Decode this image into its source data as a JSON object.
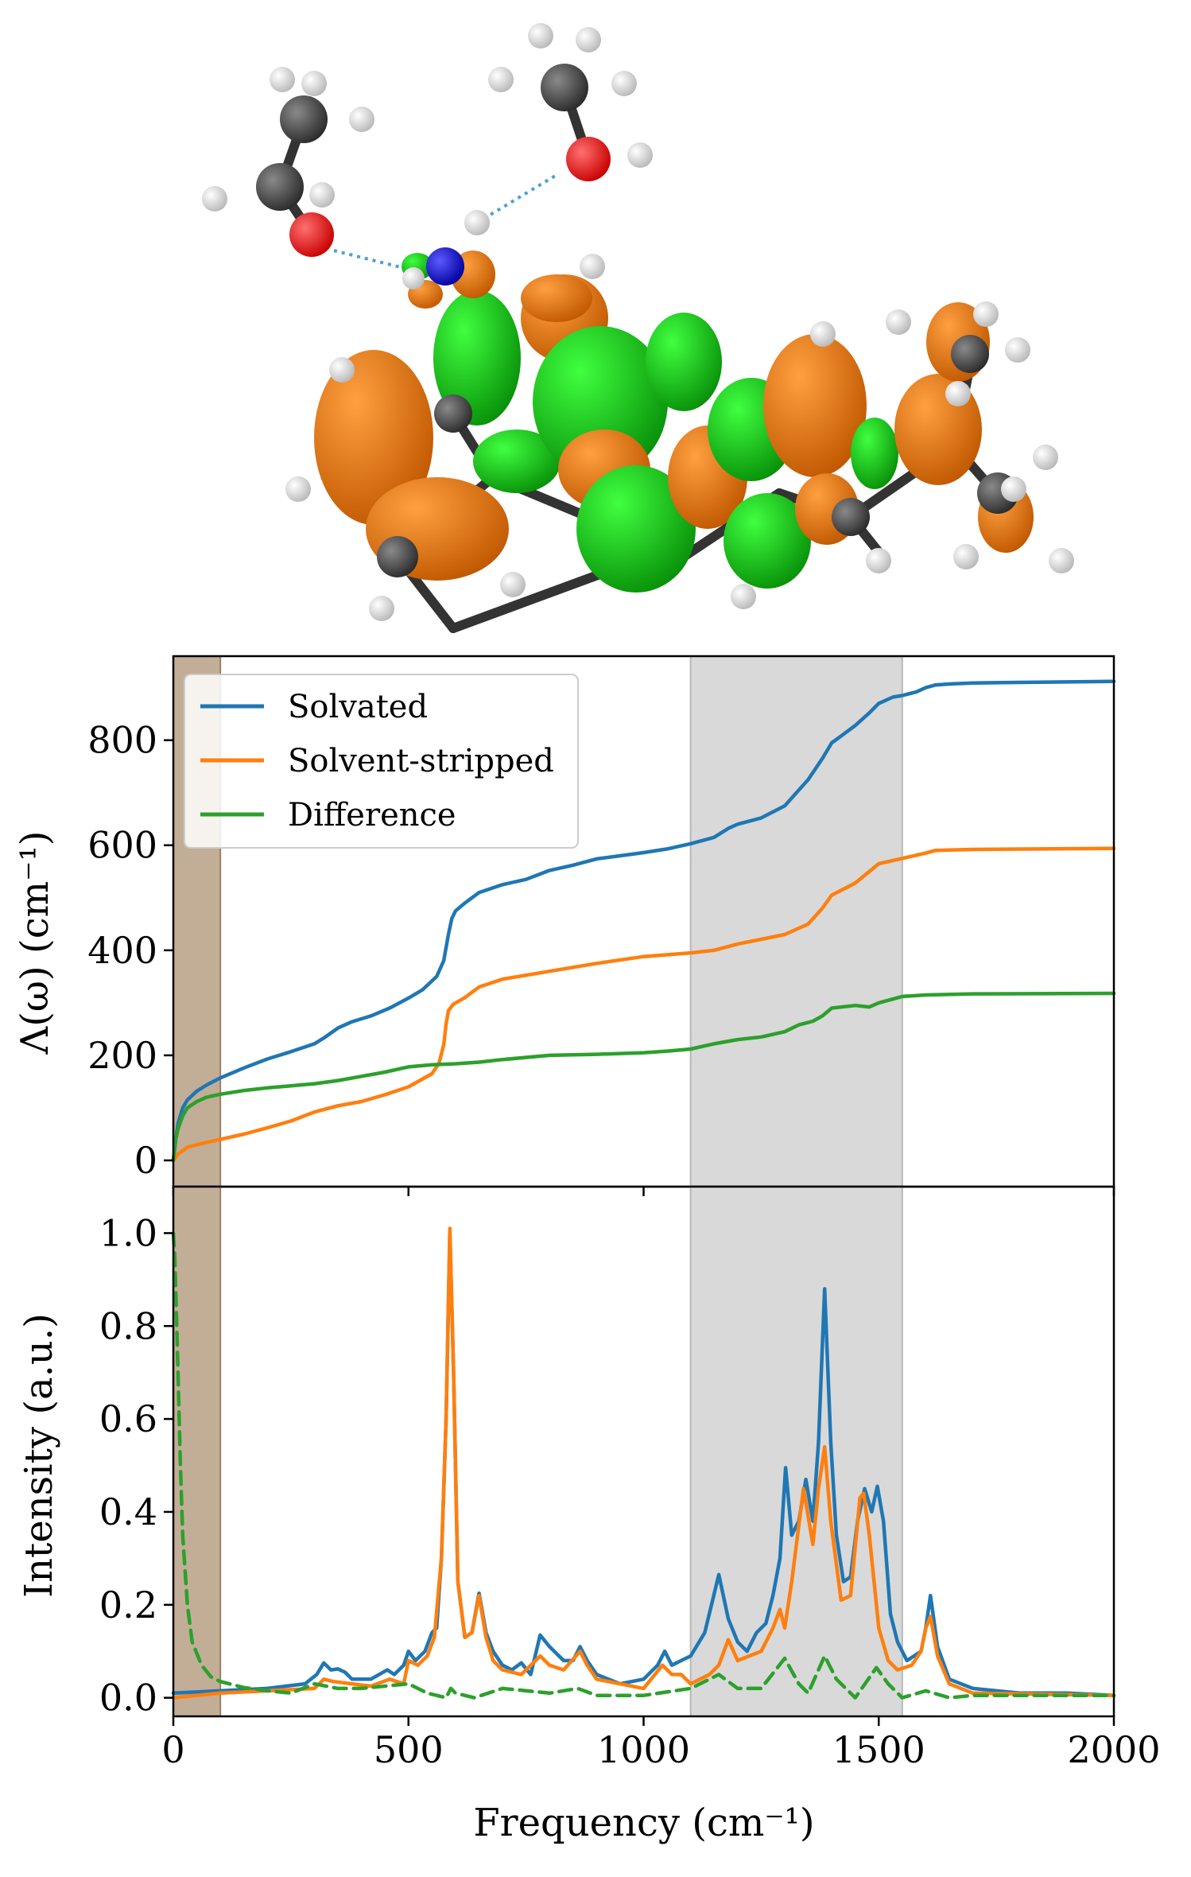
{
  "chart_data": [
    {
      "type": "line",
      "panel": "top",
      "ylabel": "Λ(ω) (cm⁻¹)",
      "xlim": [
        0,
        2000
      ],
      "ylim": [
        -50,
        960
      ],
      "yticks": [
        0,
        200,
        400,
        600,
        800
      ],
      "grid": false,
      "legend_placement": "top-left",
      "shaded_regions": [
        {
          "range": [
            0,
            100
          ],
          "color": "#c2ae96"
        },
        {
          "range": [
            1100,
            1550
          ],
          "color": "#d9d9d9"
        }
      ],
      "series": [
        {
          "name": "Solvated",
          "color": "#1f77b4",
          "style": "solid",
          "x": [
            0,
            5,
            10,
            20,
            30,
            50,
            70,
            100,
            150,
            200,
            250,
            300,
            320,
            350,
            380,
            420,
            460,
            500,
            530,
            560,
            575,
            585,
            592,
            600,
            620,
            650,
            700,
            750,
            800,
            850,
            900,
            950,
            1000,
            1050,
            1100,
            1150,
            1180,
            1200,
            1250,
            1300,
            1320,
            1350,
            1380,
            1400,
            1420,
            1450,
            1480,
            1500,
            1530,
            1550,
            1580,
            1600,
            1620,
            1650,
            1700,
            1800,
            1900,
            2000
          ],
          "y": [
            0,
            40,
            70,
            100,
            115,
            132,
            143,
            157,
            176,
            193,
            207,
            222,
            233,
            252,
            264,
            275,
            290,
            309,
            325,
            350,
            380,
            430,
            460,
            475,
            490,
            510,
            525,
            535,
            552,
            562,
            574,
            580,
            586,
            593,
            603,
            615,
            632,
            640,
            652,
            675,
            695,
            725,
            765,
            795,
            808,
            828,
            852,
            870,
            882,
            885,
            892,
            900,
            905,
            907,
            909,
            910,
            911,
            912
          ]
        },
        {
          "name": "Solvent-stripped",
          "color": "#ff7f0e",
          "style": "solid",
          "x": [
            0,
            10,
            30,
            60,
            100,
            150,
            200,
            250,
            300,
            350,
            400,
            450,
            500,
            550,
            565,
            575,
            580,
            585,
            595,
            620,
            650,
            700,
            800,
            900,
            1000,
            1100,
            1150,
            1200,
            1300,
            1350,
            1380,
            1400,
            1450,
            1480,
            1500,
            1550,
            1600,
            1620,
            1700,
            2000
          ],
          "y": [
            0,
            12,
            25,
            32,
            40,
            50,
            62,
            75,
            92,
            104,
            112,
            125,
            140,
            165,
            185,
            220,
            260,
            285,
            297,
            310,
            330,
            345,
            360,
            375,
            388,
            395,
            400,
            412,
            430,
            450,
            480,
            505,
            528,
            550,
            565,
            575,
            585,
            590,
            592,
            594
          ]
        },
        {
          "name": "Difference",
          "color": "#2ca02c",
          "style": "solid",
          "x": [
            0,
            5,
            10,
            20,
            30,
            50,
            70,
            100,
            150,
            200,
            250,
            300,
            350,
            400,
            450,
            500,
            550,
            600,
            650,
            700,
            800,
            900,
            1000,
            1050,
            1100,
            1150,
            1200,
            1250,
            1300,
            1330,
            1360,
            1380,
            1400,
            1450,
            1480,
            1500,
            1550,
            1600,
            1700,
            2000
          ],
          "y": [
            0,
            40,
            60,
            85,
            100,
            112,
            120,
            126,
            133,
            138,
            142,
            146,
            152,
            160,
            168,
            178,
            182,
            184,
            187,
            192,
            200,
            202,
            205,
            208,
            212,
            222,
            230,
            235,
            245,
            258,
            265,
            275,
            290,
            295,
            292,
            300,
            312,
            315,
            317,
            318
          ]
        }
      ]
    },
    {
      "type": "line",
      "panel": "bottom",
      "xlabel": "Frequency (cm⁻¹)",
      "ylabel": "Intensity (a.u.)",
      "xlim": [
        0,
        2000
      ],
      "ylim": [
        -0.04,
        1.1
      ],
      "xticks": [
        0,
        500,
        1000,
        1500,
        2000
      ],
      "yticks": [
        0.0,
        0.2,
        0.4,
        0.6,
        0.8,
        1.0
      ],
      "ytick_labels": [
        "0.0",
        "0.2",
        "0.4",
        "0.6",
        "0.8",
        "1.0"
      ],
      "grid": false,
      "shaded_regions": [
        {
          "range": [
            0,
            100
          ],
          "color": "#c2ae96"
        },
        {
          "range": [
            1100,
            1550
          ],
          "color": "#d9d9d9"
        }
      ],
      "series": [
        {
          "name": "Solvated",
          "color": "#1f77b4",
          "style": "solid",
          "x": [
            0,
            100,
            200,
            280,
            305,
            320,
            335,
            350,
            365,
            380,
            420,
            455,
            470,
            490,
            500,
            515,
            535,
            550,
            560,
            570,
            580,
            588,
            596,
            605,
            620,
            635,
            650,
            665,
            680,
            700,
            720,
            740,
            760,
            780,
            800,
            830,
            850,
            865,
            880,
            900,
            950,
            1000,
            1030,
            1045,
            1060,
            1080,
            1100,
            1130,
            1160,
            1180,
            1200,
            1220,
            1240,
            1260,
            1275,
            1290,
            1302,
            1315,
            1330,
            1345,
            1360,
            1372,
            1385,
            1398,
            1410,
            1425,
            1440,
            1455,
            1470,
            1485,
            1497,
            1510,
            1525,
            1540,
            1560,
            1590,
            1600,
            1610,
            1625,
            1650,
            1700,
            1800,
            1900,
            2000
          ],
          "y": [
            0.01,
            0.015,
            0.02,
            0.03,
            0.05,
            0.075,
            0.06,
            0.062,
            0.055,
            0.04,
            0.04,
            0.06,
            0.05,
            0.07,
            0.1,
            0.08,
            0.1,
            0.14,
            0.15,
            0.3,
            0.6,
            1.0,
            0.7,
            0.25,
            0.13,
            0.14,
            0.225,
            0.14,
            0.1,
            0.07,
            0.06,
            0.075,
            0.05,
            0.135,
            0.11,
            0.08,
            0.08,
            0.11,
            0.08,
            0.05,
            0.03,
            0.04,
            0.07,
            0.1,
            0.07,
            0.08,
            0.09,
            0.14,
            0.265,
            0.17,
            0.12,
            0.1,
            0.14,
            0.16,
            0.22,
            0.3,
            0.495,
            0.35,
            0.38,
            0.47,
            0.38,
            0.55,
            0.88,
            0.55,
            0.35,
            0.25,
            0.26,
            0.38,
            0.45,
            0.4,
            0.455,
            0.38,
            0.18,
            0.12,
            0.08,
            0.1,
            0.15,
            0.22,
            0.11,
            0.04,
            0.02,
            0.01,
            0.01,
            0.005
          ]
        },
        {
          "name": "Solvent-stripped",
          "color": "#ff7f0e",
          "style": "solid",
          "x": [
            0,
            100,
            200,
            300,
            320,
            340,
            380,
            420,
            460,
            490,
            500,
            520,
            540,
            555,
            570,
            580,
            588,
            596,
            605,
            620,
            635,
            650,
            665,
            680,
            700,
            740,
            780,
            800,
            830,
            865,
            880,
            900,
            1000,
            1040,
            1060,
            1080,
            1100,
            1140,
            1160,
            1180,
            1200,
            1250,
            1275,
            1290,
            1300,
            1315,
            1340,
            1360,
            1372,
            1385,
            1398,
            1420,
            1440,
            1460,
            1468,
            1480,
            1500,
            1520,
            1540,
            1570,
            1590,
            1600,
            1610,
            1625,
            1650,
            1700,
            2000
          ],
          "y": [
            0.0,
            0.01,
            0.015,
            0.02,
            0.04,
            0.035,
            0.03,
            0.025,
            0.04,
            0.03,
            0.08,
            0.07,
            0.09,
            0.13,
            0.3,
            0.6,
            1.01,
            0.7,
            0.25,
            0.13,
            0.14,
            0.22,
            0.13,
            0.08,
            0.06,
            0.05,
            0.09,
            0.07,
            0.06,
            0.1,
            0.07,
            0.04,
            0.02,
            0.07,
            0.05,
            0.05,
            0.03,
            0.05,
            0.07,
            0.125,
            0.08,
            0.1,
            0.15,
            0.19,
            0.15,
            0.25,
            0.45,
            0.33,
            0.45,
            0.54,
            0.38,
            0.21,
            0.22,
            0.43,
            0.44,
            0.35,
            0.15,
            0.08,
            0.06,
            0.07,
            0.1,
            0.15,
            0.175,
            0.09,
            0.03,
            0.01,
            0.005
          ]
        },
        {
          "name": "Difference",
          "color": "#2ca02c",
          "style": "dashed",
          "x": [
            0,
            3,
            6,
            10,
            15,
            20,
            30,
            40,
            60,
            80,
            100,
            150,
            200,
            250,
            300,
            350,
            400,
            500,
            540,
            560,
            580,
            590,
            600,
            640,
            700,
            800,
            860,
            900,
            1000,
            1100,
            1160,
            1200,
            1250,
            1300,
            1330,
            1350,
            1385,
            1410,
            1450,
            1495,
            1520,
            1550,
            1600,
            1650,
            1700,
            1800,
            2000
          ],
          "y": [
            1.0,
            0.95,
            0.85,
            0.7,
            0.5,
            0.35,
            0.2,
            0.12,
            0.07,
            0.045,
            0.035,
            0.022,
            0.015,
            0.01,
            0.03,
            0.02,
            0.02,
            0.03,
            0.01,
            0.005,
            0.0,
            0.02,
            0.01,
            0.0,
            0.02,
            0.01,
            0.02,
            0.005,
            0.005,
            0.02,
            0.05,
            0.02,
            0.02,
            0.085,
            0.03,
            0.01,
            0.09,
            0.04,
            0.0,
            0.065,
            0.03,
            0.0,
            0.015,
            0.0,
            0.005,
            0.005,
            0.005
          ]
        }
      ]
    }
  ],
  "molecule": {
    "atom_colors": {
      "carbon": "#404040",
      "hydrogen": "#ffffff",
      "oxygen": "#ff0000",
      "nitrogen": "#0000ff"
    },
    "orbital_colors": {
      "positive": "#ff7f00",
      "negative": "#10c010"
    },
    "hbond_color": "#4aa0d8"
  }
}
